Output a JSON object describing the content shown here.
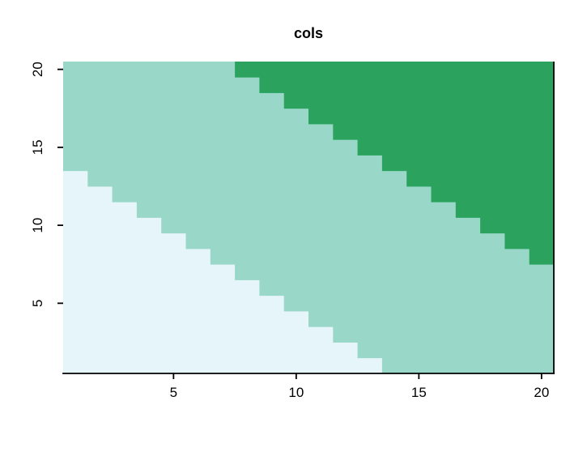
{
  "figure": {
    "background": "#FFFFFF"
  },
  "chart_data": {
    "type": "heatmap",
    "title": "cols",
    "xlabel": "",
    "ylabel": "",
    "x_range": [
      0.5,
      20.5
    ],
    "y_range": [
      0.5,
      20.5
    ],
    "n_cols": 20,
    "n_rows": 20,
    "x_ticks": [
      5,
      10,
      15,
      20
    ],
    "y_ticks": [
      5,
      10,
      15,
      20
    ],
    "grid": false,
    "legend_position": "none",
    "axis_color": "#000000",
    "palette": [
      "#E5F5F9",
      "#99D8C9",
      "#2CA25F"
    ],
    "palette_class_names": [
      "low",
      "mid",
      "high"
    ],
    "cell_color_index_rows_bottom_to_top": [
      "00000000000001111111",
      "00000000000011111111",
      "00000000000111111111",
      "00000000001111111111",
      "00000000011111111111",
      "00000000111111111111",
      "00000001111111111111",
      "00000011111111111112",
      "00000111111111111122",
      "00001111111111111222",
      "00011111111111112222",
      "00111111111111122222",
      "01111111111111222222",
      "11111111111112222222",
      "11111111111122222222",
      "11111111111222222222",
      "11111111112222222222",
      "11111111122222222222",
      "11111111222222222222",
      "11111112222222222222"
    ]
  }
}
